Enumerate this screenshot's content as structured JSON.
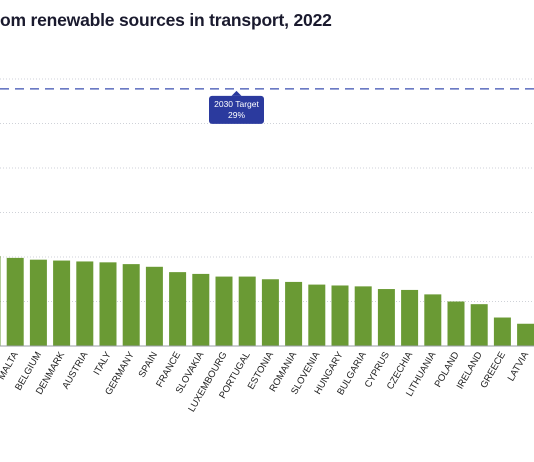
{
  "title": "om renewable sources in transport, 2022",
  "colors": {
    "bar": "#6a9a34",
    "target_line": "#3a4fb0",
    "target_box": "#2b3a9e",
    "grid": "#cfd2d8",
    "baseline": "#9a9ea6"
  },
  "chart_data": {
    "type": "bar",
    "title": "om renewable sources in transport, 2022",
    "categories": [
      "",
      "MALTA",
      "BELGIUM",
      "DENMARK",
      "AUSTRIA",
      "ITALY",
      "GERMANY",
      "SPAIN",
      "FRANCE",
      "SLOVAKIA",
      "LUXEMBOURG",
      "PORTUGAL",
      "ESTONIA",
      "ROMANIA",
      "SLOVENIA",
      "HUNGARY",
      "BULGARIA",
      "CYPRUS",
      "CZECHIA",
      "LITHUANIA",
      "POLAND",
      "IRELAND",
      "GREECE",
      "LATVIA"
    ],
    "values": [
      10.1,
      9.9,
      9.7,
      9.6,
      9.5,
      9.4,
      9.2,
      8.9,
      8.3,
      8.1,
      7.8,
      7.8,
      7.5,
      7.2,
      6.9,
      6.8,
      6.7,
      6.4,
      6.3,
      5.8,
      5.0,
      4.7,
      3.2,
      2.5
    ],
    "ylim": [
      0,
      30
    ],
    "grid": true,
    "target": {
      "label": "2030 Target",
      "value_label": "29%",
      "value": 29
    }
  }
}
